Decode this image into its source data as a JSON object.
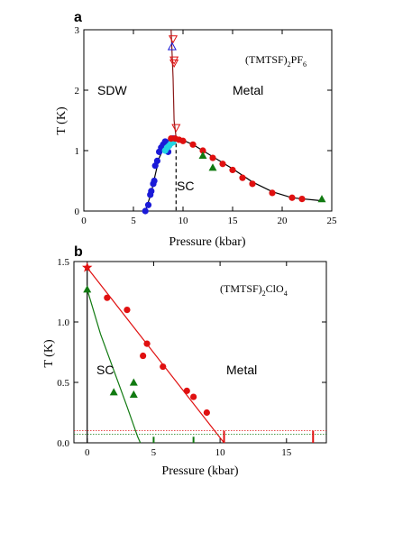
{
  "chart_data": [
    {
      "type": "scatter",
      "panel_label": "a",
      "compound_prefix": "(TMTSF)",
      "compound_sub": "2",
      "compound_suffix": "PF",
      "compound_suffix_sub": "6",
      "xlabel": "Pressure (kbar)",
      "ylabel": "T (K)",
      "xlim": [
        0,
        25
      ],
      "ylim": [
        0,
        3
      ],
      "xticks": [
        0,
        5,
        10,
        15,
        20,
        25
      ],
      "yticks": [
        0,
        1,
        2,
        3
      ],
      "regions": {
        "sdw": "SDW",
        "metal": "Metal",
        "sc": "SC"
      },
      "colors": {
        "blue": "#1a1ad8",
        "cyan": "#24d4e4",
        "red": "#e01010",
        "green": "#117a11",
        "darkred": "#8b1a1a"
      },
      "series": [
        {
          "marker": "circle",
          "color": "blue",
          "points": [
            [
              6.2,
              0.0
            ],
            [
              6.5,
              0.1
            ],
            [
              6.7,
              0.27
            ],
            [
              6.8,
              0.33
            ],
            [
              7.0,
              0.45
            ],
            [
              7.1,
              0.5
            ],
            [
              7.2,
              0.75
            ],
            [
              7.4,
              0.83
            ],
            [
              7.6,
              0.98
            ],
            [
              7.8,
              1.05
            ],
            [
              8.0,
              1.1
            ],
            [
              8.2,
              1.15
            ],
            [
              8.3,
              1.05
            ],
            [
              8.5,
              0.98
            ],
            [
              8.6,
              1.12
            ],
            [
              8.8,
              1.18
            ],
            [
              9.0,
              1.2
            ]
          ]
        },
        {
          "marker": "circle",
          "color": "cyan",
          "points": [
            [
              8.2,
              1.0
            ],
            [
              8.4,
              1.05
            ],
            [
              8.6,
              1.08
            ],
            [
              8.8,
              1.12
            ],
            [
              9.0,
              1.14
            ]
          ]
        },
        {
          "marker": "circle",
          "color": "red",
          "points": [
            [
              8.8,
              1.2
            ],
            [
              9.2,
              1.2
            ],
            [
              9.6,
              1.18
            ],
            [
              10.0,
              1.16
            ],
            [
              11.0,
              1.1
            ],
            [
              12.0,
              1.0
            ],
            [
              13.0,
              0.88
            ],
            [
              14.0,
              0.78
            ],
            [
              15.0,
              0.68
            ],
            [
              16.0,
              0.55
            ],
            [
              17.0,
              0.45
            ],
            [
              19.0,
              0.3
            ],
            [
              21.0,
              0.22
            ],
            [
              22.0,
              0.2
            ]
          ]
        },
        {
          "marker": "triangle-up",
          "color": "green",
          "points": [
            [
              12.0,
              0.92
            ],
            [
              13.0,
              0.72
            ],
            [
              24.0,
              0.2
            ]
          ]
        },
        {
          "marker": "triangle-down-open",
          "color": "red",
          "points": [
            [
              9.0,
              2.85
            ],
            [
              9.1,
              2.5
            ],
            [
              9.1,
              2.45
            ],
            [
              9.3,
              1.38
            ]
          ]
        },
        {
          "marker": "triangle-up-open",
          "color": "blue",
          "points": [
            [
              8.9,
              2.72
            ]
          ]
        }
      ],
      "lines": [
        {
          "style": "solid",
          "color": "darkred",
          "points": [
            [
              8.8,
              3.0
            ],
            [
              9.0,
              2.2
            ],
            [
              9.1,
              1.5
            ],
            [
              9.3,
              1.22
            ]
          ]
        },
        {
          "style": "solid",
          "color": "black",
          "points": [
            [
              6.2,
              0.0
            ],
            [
              6.8,
              0.3
            ],
            [
              7.2,
              0.6
            ],
            [
              7.6,
              0.88
            ],
            [
              8.2,
              1.1
            ],
            [
              8.8,
              1.2
            ],
            [
              9.6,
              1.2
            ],
            [
              11.0,
              1.1
            ],
            [
              13.0,
              0.9
            ],
            [
              15.0,
              0.7
            ],
            [
              17.0,
              0.48
            ],
            [
              19.0,
              0.32
            ],
            [
              21.0,
              0.22
            ],
            [
              24.0,
              0.17
            ]
          ]
        },
        {
          "style": "dashed",
          "color": "black",
          "points": [
            [
              9.3,
              1.22
            ],
            [
              9.3,
              0.0
            ]
          ]
        }
      ]
    },
    {
      "type": "scatter",
      "panel_label": "b",
      "compound_prefix": "(TMTSF)",
      "compound_sub": "2",
      "compound_suffix": "ClO",
      "compound_suffix_sub": "4",
      "xlabel": "Pressure (kbar)",
      "ylabel": "T (K)",
      "xlim": [
        -1,
        18
      ],
      "ylim": [
        0,
        1.5
      ],
      "xticks": [
        0,
        5,
        10,
        15
      ],
      "yticks": [
        0.0,
        0.5,
        1.0,
        1.5
      ],
      "ytick_labels": [
        "0.0",
        "0.5",
        "1.0",
        "1.5"
      ],
      "regions": {
        "sc": "SC",
        "metal": "Metal"
      },
      "colors": {
        "red": "#e01010",
        "green": "#117a11",
        "black": "#000000"
      },
      "series": [
        {
          "marker": "star",
          "color": "red",
          "points": [
            [
              0.0,
              1.45
            ]
          ]
        },
        {
          "marker": "circle",
          "color": "red",
          "points": [
            [
              1.5,
              1.2
            ],
            [
              3.0,
              1.1
            ],
            [
              4.5,
              0.82
            ],
            [
              5.7,
              0.63
            ],
            [
              4.2,
              0.72
            ],
            [
              7.5,
              0.43
            ],
            [
              8.0,
              0.38
            ],
            [
              9.0,
              0.25
            ]
          ]
        },
        {
          "marker": "triangle-up",
          "color": "green",
          "points": [
            [
              0.0,
              1.27
            ],
            [
              2.0,
              0.42
            ],
            [
              3.5,
              0.5
            ],
            [
              3.5,
              0.4
            ]
          ]
        }
      ],
      "lines": [
        {
          "style": "solid",
          "color": "red",
          "points": [
            [
              0.0,
              1.45
            ],
            [
              10.3,
              0.0
            ]
          ]
        },
        {
          "style": "solid",
          "color": "green",
          "points": [
            [
              0.0,
              1.27
            ],
            [
              1.0,
              0.9
            ],
            [
              2.0,
              0.6
            ],
            [
              3.0,
              0.3
            ],
            [
              3.8,
              0.05
            ],
            [
              4.0,
              0.0
            ]
          ]
        },
        {
          "style": "solid",
          "color": "black",
          "points": [
            [
              0.0,
              0.0
            ],
            [
              0.0,
              1.45
            ]
          ]
        },
        {
          "style": "dotted",
          "color": "red",
          "points": [
            [
              -1.0,
              0.1
            ],
            [
              18.0,
              0.1
            ]
          ]
        },
        {
          "style": "dotted",
          "color": "green",
          "points": [
            [
              -1.0,
              0.07
            ],
            [
              18.0,
              0.07
            ]
          ]
        }
      ],
      "vmarks": [
        {
          "x": 5.0,
          "color": "green",
          "height": 0.05
        },
        {
          "x": 8.0,
          "color": "green",
          "height": 0.05
        },
        {
          "x": 10.3,
          "color": "red",
          "height": 0.1
        },
        {
          "x": 17.0,
          "color": "red",
          "height": 0.1
        }
      ]
    }
  ]
}
